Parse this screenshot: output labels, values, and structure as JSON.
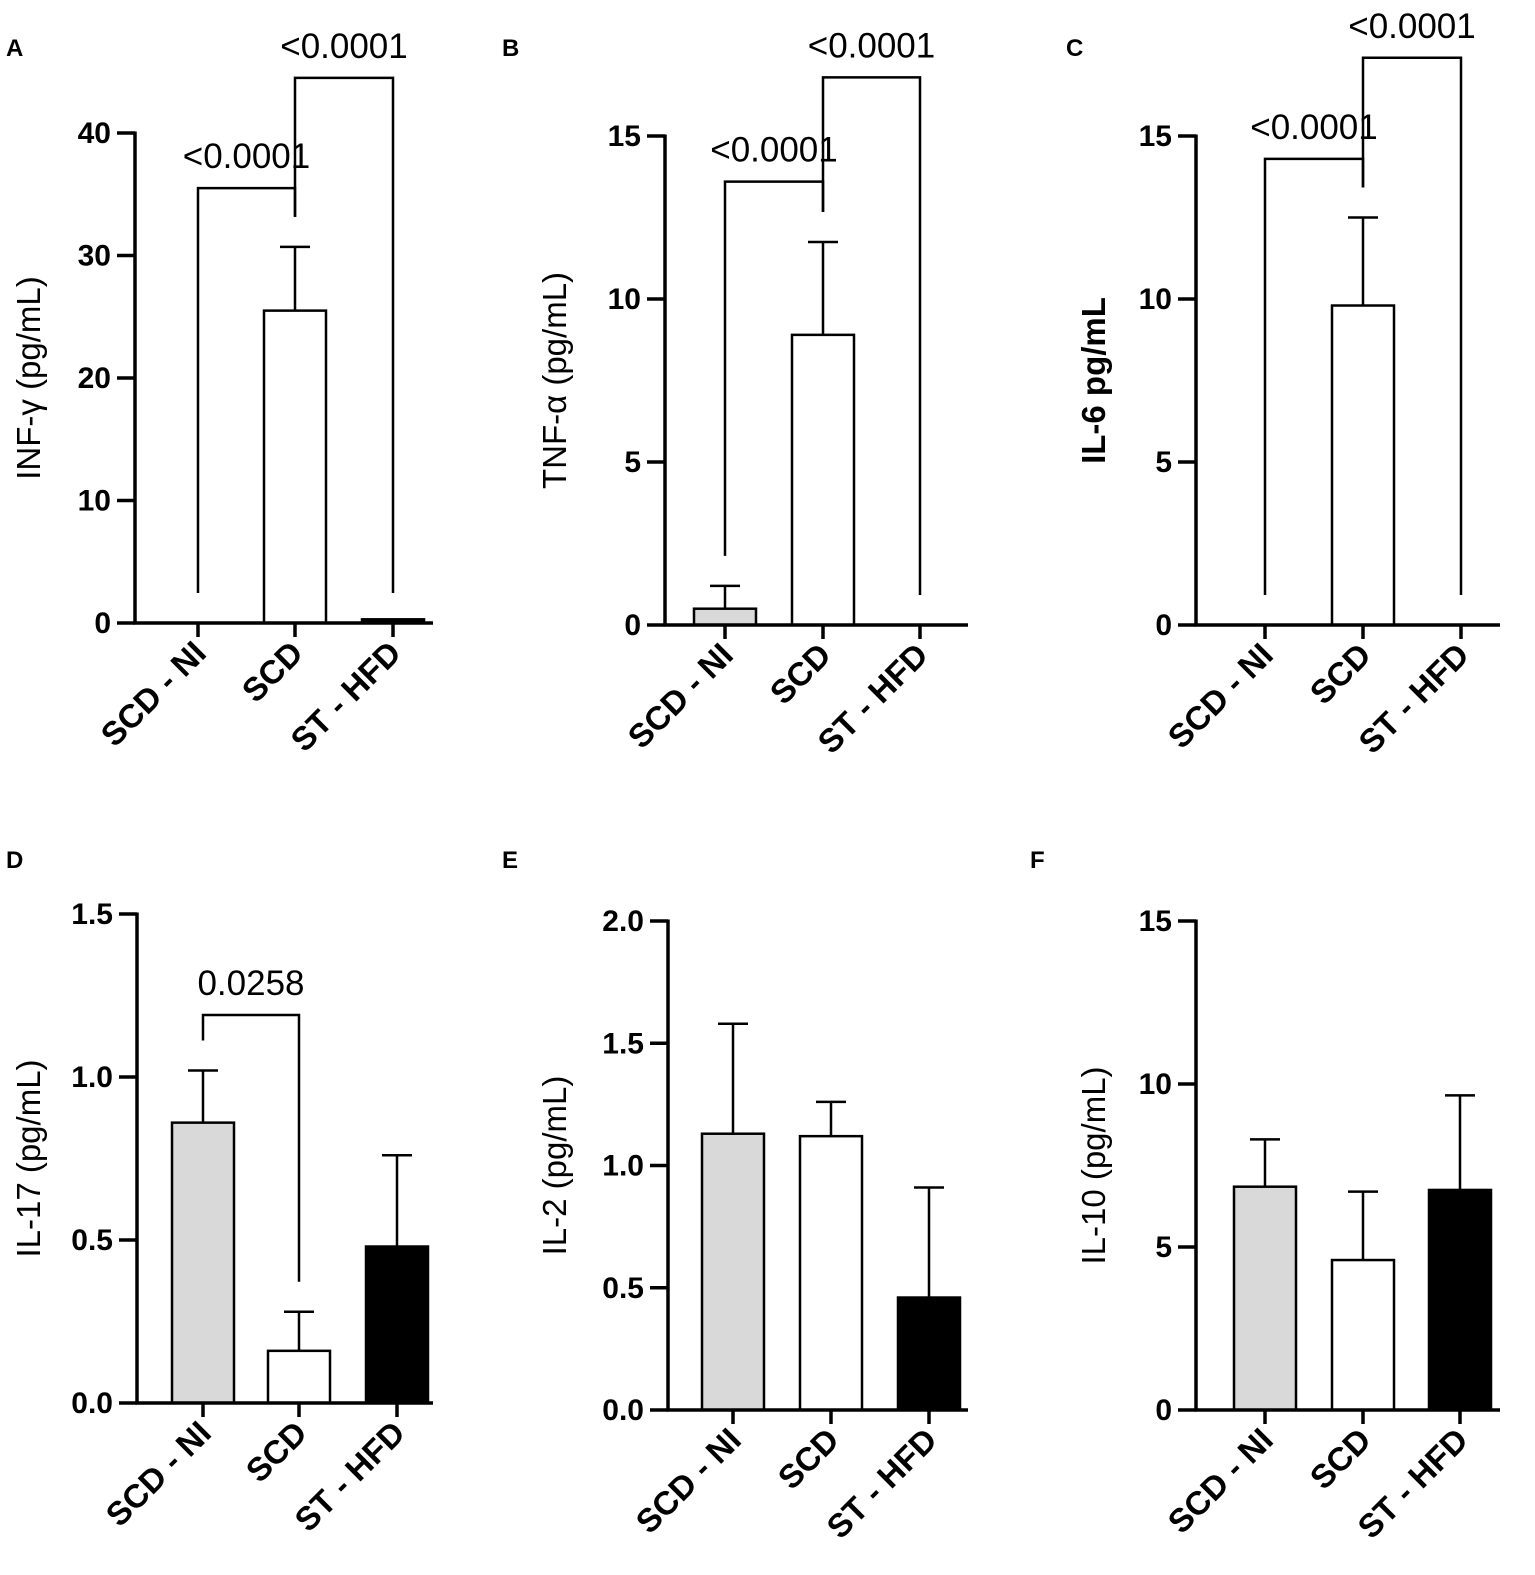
{
  "chart_data": [
    {
      "type": "bar",
      "panel": "A",
      "categories": [
        "SCD - NI",
        "SCD",
        "ST - HFD"
      ],
      "values": [
        0,
        25.5,
        0.3
      ],
      "errors": [
        0,
        5.2,
        0
      ],
      "fills": [
        "#d9d9d9",
        "#ffffff",
        "#000000"
      ],
      "ylabel": "INF-γ (pg/mL)",
      "ylabel_bold": false,
      "ylim": [
        0,
        40
      ],
      "yticks": [
        0,
        10,
        20,
        30,
        40
      ],
      "comparisons": [
        {
          "from": 0,
          "to": 1,
          "label": "<0.0001",
          "level": 35.5
        },
        {
          "from": 1,
          "to": 2,
          "label": "<0.0001",
          "level": 44.5
        }
      ]
    },
    {
      "type": "bar",
      "panel": "B",
      "categories": [
        "SCD - NI",
        "SCD",
        "ST - HFD"
      ],
      "values": [
        0.5,
        8.9,
        0
      ],
      "errors": [
        0.7,
        2.85,
        0
      ],
      "fills": [
        "#d9d9d9",
        "#ffffff",
        "#000000"
      ],
      "ylabel": "TNF-α (pg/mL)",
      "ylabel_bold": false,
      "ylim": [
        0,
        15
      ],
      "yticks": [
        0,
        5,
        10,
        15
      ],
      "comparisons": [
        {
          "from": 0,
          "to": 1,
          "label": "<0.0001",
          "level": 13.6
        },
        {
          "from": 1,
          "to": 2,
          "label": "<0.0001",
          "level": 16.8
        }
      ]
    },
    {
      "type": "bar",
      "panel": "C",
      "categories": [
        "SCD - NI",
        "SCD",
        "ST - HFD"
      ],
      "values": [
        0,
        9.8,
        0
      ],
      "errors": [
        0,
        2.7,
        0
      ],
      "fills": [
        "#d9d9d9",
        "#ffffff",
        "#000000"
      ],
      "ylabel": "IL-6 pg/mL",
      "ylabel_bold": true,
      "ylim": [
        0,
        15
      ],
      "yticks": [
        0,
        5,
        10,
        15
      ],
      "comparisons": [
        {
          "from": 0,
          "to": 1,
          "label": "<0.0001",
          "level": 14.3
        },
        {
          "from": 1,
          "to": 2,
          "label": "<0.0001",
          "level": 17.4
        }
      ]
    },
    {
      "type": "bar",
      "panel": "D",
      "categories": [
        "SCD - NI",
        "SCD",
        "ST - HFD"
      ],
      "values": [
        0.86,
        0.16,
        0.48
      ],
      "errors": [
        0.16,
        0.12,
        0.28
      ],
      "fills": [
        "#d9d9d9",
        "#ffffff",
        "#000000"
      ],
      "ylabel": "IL-17 (pg/mL)",
      "ylabel_bold": false,
      "ylim": [
        0,
        1.5
      ],
      "yticks": [
        "0.0",
        "0.5",
        "1.0",
        "1.5"
      ],
      "comparisons": [
        {
          "from": 0,
          "to": 1,
          "label": "0.0258",
          "level": 1.19
        }
      ]
    },
    {
      "type": "bar",
      "panel": "E",
      "categories": [
        "SCD - NI",
        "SCD",
        "ST - HFD"
      ],
      "values": [
        1.13,
        1.12,
        0.46
      ],
      "errors": [
        0.45,
        0.14,
        0.45
      ],
      "fills": [
        "#d9d9d9",
        "#ffffff",
        "#000000"
      ],
      "ylabel": "IL-2 (pg/mL)",
      "ylabel_bold": false,
      "ylim": [
        0,
        2.0
      ],
      "yticks": [
        "0.0",
        "0.5",
        "1.0",
        "1.5",
        "2.0"
      ],
      "comparisons": []
    },
    {
      "type": "bar",
      "panel": "F",
      "categories": [
        "SCD - NI",
        "SCD",
        "ST - HFD"
      ],
      "values": [
        6.85,
        4.6,
        6.75
      ],
      "errors": [
        1.45,
        2.1,
        2.9
      ],
      "fills": [
        "#d9d9d9",
        "#ffffff",
        "#000000"
      ],
      "ylabel": "IL-10 (pg/mL)",
      "ylabel_bold": false,
      "ylim": [
        0,
        15
      ],
      "yticks": [
        0,
        5,
        10,
        15
      ],
      "comparisons": []
    }
  ]
}
